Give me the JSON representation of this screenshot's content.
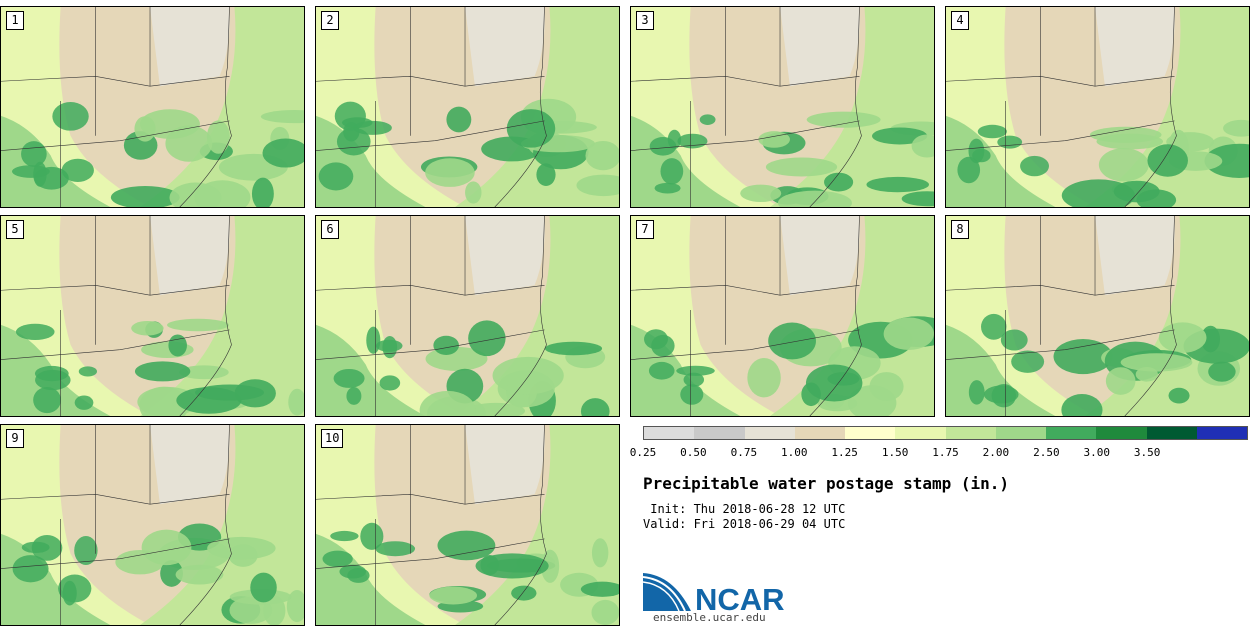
{
  "panels": [
    {
      "label": "1"
    },
    {
      "label": "2"
    },
    {
      "label": "3"
    },
    {
      "label": "4"
    },
    {
      "label": "5"
    },
    {
      "label": "6"
    },
    {
      "label": "7"
    },
    {
      "label": "8"
    },
    {
      "label": "9"
    },
    {
      "label": "10"
    }
  ],
  "colorbar": {
    "colors": [
      "#dcdcdc",
      "#c9c9c9",
      "#e6e2d6",
      "#e5d7b8",
      "#ffffcc",
      "#e8f7b0",
      "#c2e699",
      "#9fd88a",
      "#41ab5d",
      "#1f8a3c",
      "#005a32",
      "#1f2fb5"
    ],
    "ticks": [
      "0.25",
      "0.50",
      "0.75",
      "1.00",
      "1.25",
      "1.50",
      "1.75",
      "2.00",
      "2.50",
      "3.00",
      "3.50"
    ]
  },
  "title": "Precipitable water postage stamp (in.)",
  "init": " Init: Thu 2018-06-28 12 UTC",
  "valid": "Valid: Fri 2018-06-29 04 UTC",
  "logo": {
    "text": "NCAR",
    "url": "ensemble.ucar.edu",
    "color": "#1266a8"
  }
}
